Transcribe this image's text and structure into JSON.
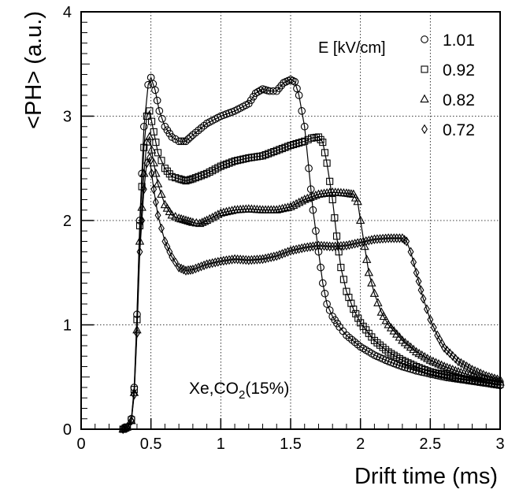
{
  "chart_data": {
    "type": "line",
    "xlabel": "Drift time (ms)",
    "ylabel": "<PH> (a.u.)",
    "xlim": [
      0,
      3
    ],
    "ylim": [
      0,
      4
    ],
    "xticks": [
      "0",
      "0.5",
      "1",
      "1.5",
      "2",
      "2.5",
      "3"
    ],
    "yticks": [
      "0",
      "1",
      "2",
      "3",
      "4"
    ],
    "grid": true,
    "annotation": "Xe,CO2(15%)",
    "legend": {
      "title": "E [kV/cm]",
      "placement": "top-right",
      "entries": [
        "1.01",
        "0.92",
        "0.82",
        "0.72"
      ]
    },
    "series": [
      {
        "name": "1.01",
        "marker": "circle",
        "points": [
          [
            0.3,
            0.0
          ],
          [
            0.33,
            0.02
          ],
          [
            0.36,
            0.1
          ],
          [
            0.38,
            0.4
          ],
          [
            0.4,
            1.1
          ],
          [
            0.42,
            2.0
          ],
          [
            0.45,
            2.9
          ],
          [
            0.48,
            3.3
          ],
          [
            0.5,
            3.37
          ],
          [
            0.53,
            3.25
          ],
          [
            0.56,
            3.05
          ],
          [
            0.6,
            2.9
          ],
          [
            0.65,
            2.8
          ],
          [
            0.7,
            2.76
          ],
          [
            0.75,
            2.76
          ],
          [
            0.8,
            2.82
          ],
          [
            0.9,
            2.93
          ],
          [
            1.0,
            3.0
          ],
          [
            1.1,
            3.05
          ],
          [
            1.2,
            3.12
          ],
          [
            1.25,
            3.22
          ],
          [
            1.3,
            3.26
          ],
          [
            1.35,
            3.24
          ],
          [
            1.4,
            3.24
          ],
          [
            1.45,
            3.32
          ],
          [
            1.5,
            3.35
          ],
          [
            1.53,
            3.33
          ],
          [
            1.56,
            3.2
          ],
          [
            1.6,
            2.9
          ],
          [
            1.63,
            2.5
          ],
          [
            1.66,
            2.1
          ],
          [
            1.7,
            1.7
          ],
          [
            1.73,
            1.4
          ],
          [
            1.76,
            1.2
          ],
          [
            1.8,
            1.08
          ],
          [
            1.85,
            0.98
          ],
          [
            1.9,
            0.9
          ],
          [
            2.0,
            0.79
          ],
          [
            2.1,
            0.71
          ],
          [
            2.2,
            0.65
          ],
          [
            2.3,
            0.6
          ],
          [
            2.4,
            0.56
          ],
          [
            2.5,
            0.53
          ],
          [
            2.6,
            0.5
          ],
          [
            2.7,
            0.48
          ],
          [
            2.8,
            0.46
          ],
          [
            2.9,
            0.44
          ],
          [
            3.0,
            0.42
          ]
        ]
      },
      {
        "name": "0.92",
        "marker": "square",
        "points": [
          [
            0.3,
            0.0
          ],
          [
            0.33,
            0.02
          ],
          [
            0.36,
            0.09
          ],
          [
            0.38,
            0.38
          ],
          [
            0.4,
            1.05
          ],
          [
            0.42,
            1.95
          ],
          [
            0.45,
            2.7
          ],
          [
            0.47,
            3.0
          ],
          [
            0.49,
            3.05
          ],
          [
            0.52,
            2.85
          ],
          [
            0.55,
            2.65
          ],
          [
            0.6,
            2.5
          ],
          [
            0.65,
            2.42
          ],
          [
            0.7,
            2.4
          ],
          [
            0.75,
            2.38
          ],
          [
            0.8,
            2.4
          ],
          [
            0.9,
            2.45
          ],
          [
            1.0,
            2.52
          ],
          [
            1.1,
            2.57
          ],
          [
            1.2,
            2.6
          ],
          [
            1.3,
            2.62
          ],
          [
            1.4,
            2.67
          ],
          [
            1.5,
            2.72
          ],
          [
            1.6,
            2.76
          ],
          [
            1.65,
            2.79
          ],
          [
            1.7,
            2.8
          ],
          [
            1.73,
            2.75
          ],
          [
            1.76,
            2.55
          ],
          [
            1.8,
            2.2
          ],
          [
            1.83,
            1.85
          ],
          [
            1.86,
            1.55
          ],
          [
            1.9,
            1.32
          ],
          [
            1.95,
            1.15
          ],
          [
            2.0,
            1.02
          ],
          [
            2.1,
            0.85
          ],
          [
            2.2,
            0.74
          ],
          [
            2.3,
            0.66
          ],
          [
            2.4,
            0.6
          ],
          [
            2.5,
            0.55
          ],
          [
            2.6,
            0.52
          ],
          [
            2.7,
            0.49
          ],
          [
            2.8,
            0.47
          ],
          [
            2.9,
            0.45
          ],
          [
            3.0,
            0.43
          ]
        ]
      },
      {
        "name": "0.82",
        "marker": "triangle",
        "points": [
          [
            0.3,
            0.0
          ],
          [
            0.33,
            0.02
          ],
          [
            0.36,
            0.08
          ],
          [
            0.38,
            0.35
          ],
          [
            0.4,
            0.95
          ],
          [
            0.42,
            1.8
          ],
          [
            0.45,
            2.45
          ],
          [
            0.47,
            2.75
          ],
          [
            0.49,
            2.8
          ],
          [
            0.52,
            2.55
          ],
          [
            0.55,
            2.35
          ],
          [
            0.6,
            2.15
          ],
          [
            0.65,
            2.05
          ],
          [
            0.7,
            2.02
          ],
          [
            0.75,
            2.0
          ],
          [
            0.8,
            1.98
          ],
          [
            0.85,
            1.97
          ],
          [
            0.9,
            2.0
          ],
          [
            1.0,
            2.07
          ],
          [
            1.1,
            2.1
          ],
          [
            1.2,
            2.11
          ],
          [
            1.3,
            2.1
          ],
          [
            1.4,
            2.1
          ],
          [
            1.5,
            2.13
          ],
          [
            1.6,
            2.2
          ],
          [
            1.7,
            2.25
          ],
          [
            1.8,
            2.27
          ],
          [
            1.9,
            2.26
          ],
          [
            1.95,
            2.25
          ],
          [
            1.98,
            2.18
          ],
          [
            2.0,
            2.0
          ],
          [
            2.03,
            1.75
          ],
          [
            2.06,
            1.5
          ],
          [
            2.1,
            1.3
          ],
          [
            2.15,
            1.12
          ],
          [
            2.2,
            1.0
          ],
          [
            2.3,
            0.85
          ],
          [
            2.4,
            0.74
          ],
          [
            2.5,
            0.66
          ],
          [
            2.6,
            0.6
          ],
          [
            2.7,
            0.55
          ],
          [
            2.8,
            0.51
          ],
          [
            2.9,
            0.48
          ],
          [
            3.0,
            0.45
          ]
        ]
      },
      {
        "name": "0.72",
        "marker": "diamond",
        "points": [
          [
            0.3,
            0.0
          ],
          [
            0.33,
            0.02
          ],
          [
            0.36,
            0.08
          ],
          [
            0.38,
            0.33
          ],
          [
            0.4,
            0.92
          ],
          [
            0.42,
            1.7
          ],
          [
            0.45,
            2.3
          ],
          [
            0.47,
            2.55
          ],
          [
            0.49,
            2.6
          ],
          [
            0.52,
            2.3
          ],
          [
            0.55,
            2.05
          ],
          [
            0.6,
            1.8
          ],
          [
            0.65,
            1.65
          ],
          [
            0.7,
            1.55
          ],
          [
            0.75,
            1.52
          ],
          [
            0.8,
            1.53
          ],
          [
            0.9,
            1.58
          ],
          [
            1.0,
            1.61
          ],
          [
            1.1,
            1.63
          ],
          [
            1.2,
            1.62
          ],
          [
            1.3,
            1.63
          ],
          [
            1.4,
            1.66
          ],
          [
            1.5,
            1.71
          ],
          [
            1.6,
            1.74
          ],
          [
            1.7,
            1.76
          ],
          [
            1.8,
            1.75
          ],
          [
            1.9,
            1.76
          ],
          [
            2.0,
            1.79
          ],
          [
            2.1,
            1.82
          ],
          [
            2.2,
            1.83
          ],
          [
            2.3,
            1.83
          ],
          [
            2.33,
            1.8
          ],
          [
            2.36,
            1.7
          ],
          [
            2.4,
            1.5
          ],
          [
            2.45,
            1.25
          ],
          [
            2.5,
            1.05
          ],
          [
            2.55,
            0.9
          ],
          [
            2.6,
            0.78
          ],
          [
            2.7,
            0.65
          ],
          [
            2.8,
            0.57
          ],
          [
            2.9,
            0.51
          ],
          [
            3.0,
            0.47
          ]
        ]
      }
    ]
  }
}
